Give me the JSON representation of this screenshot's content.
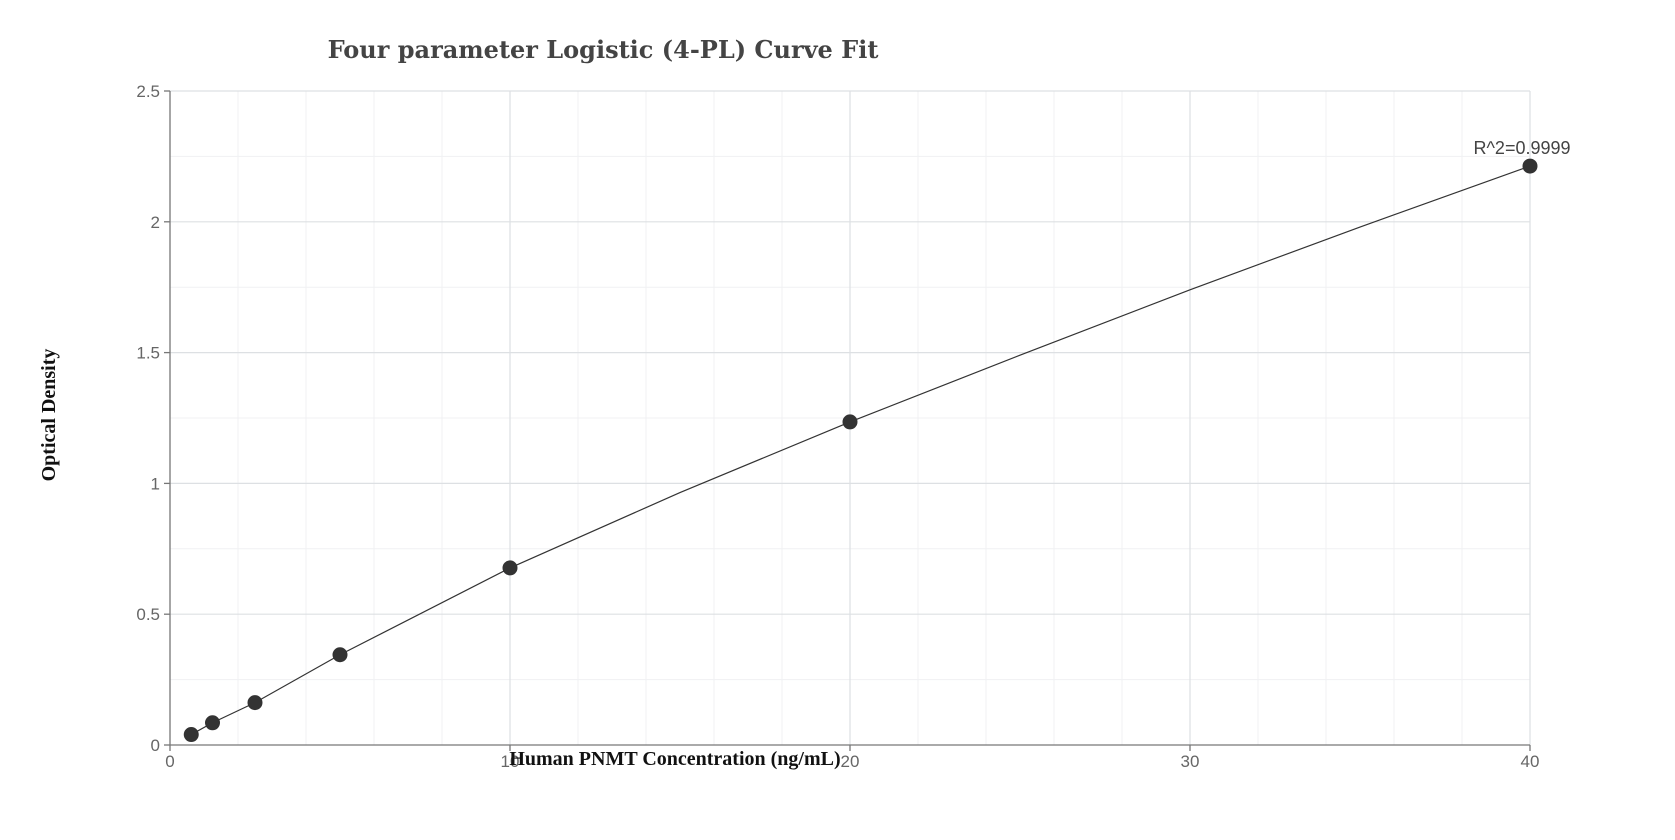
{
  "chart_data": {
    "type": "scatter",
    "title": "Four parameter Logistic (4-PL) Curve Fit",
    "xlabel": "Human PNMT Concentration (ng/mL)",
    "ylabel": "Optical Density",
    "xlim": [
      0,
      40
    ],
    "ylim": [
      0,
      2.5
    ],
    "x_ticks": [
      0,
      10,
      20,
      30,
      40
    ],
    "y_ticks": [
      0,
      0.5,
      1,
      1.5,
      2,
      2.5
    ],
    "x_tick_labels": [
      "0",
      "10",
      "20",
      "30",
      "40"
    ],
    "y_tick_labels": [
      "0",
      "0.5",
      "1",
      "1.5",
      "2",
      "2.5"
    ],
    "grid": true,
    "series": [
      {
        "type": "scatter",
        "x": [
          0.625,
          1.25,
          2.5,
          5,
          10,
          20,
          40
        ],
        "y": [
          0.04,
          0.085,
          0.162,
          0.345,
          0.677,
          1.235,
          2.213
        ]
      },
      {
        "type": "line",
        "x": [
          0.625,
          1.25,
          2.5,
          5,
          10,
          15,
          20,
          25,
          30,
          35,
          40
        ],
        "y": [
          0.04,
          0.085,
          0.162,
          0.345,
          0.677,
          0.965,
          1.235,
          1.49,
          1.74,
          1.98,
          2.213
        ]
      }
    ],
    "annotations": [
      {
        "text": "R^2=0.9999",
        "x": 40,
        "y": 2.213
      }
    ]
  }
}
